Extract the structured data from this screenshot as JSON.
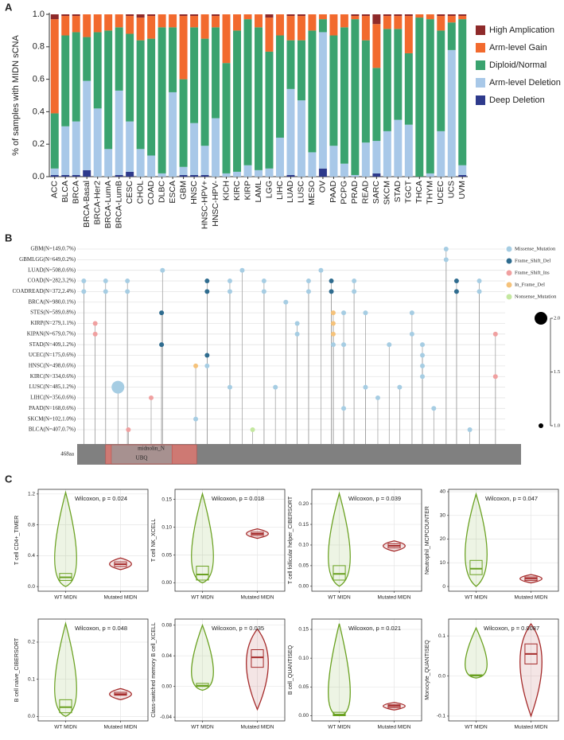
{
  "chart_data": [
    {
      "type": "bar",
      "stacked": true,
      "panel_label": "A",
      "ylabel": "% of samples with MIDN sCNA",
      "categories": [
        "ACC",
        "BLCA",
        "BRCA",
        "BRCA-Basal",
        "BRCA-Her2",
        "BRCA-LumA",
        "BRCA-LumB",
        "CESC",
        "CHOL",
        "COAD",
        "DLBC",
        "ESCA",
        "GBM",
        "HNSC",
        "HNSC-HPV+",
        "HNSC-HPV-",
        "KICH",
        "KIRC",
        "KIRP",
        "LAML",
        "LGG",
        "LIHC",
        "LUAD",
        "LUSC",
        "MESO",
        "OV",
        "PAAD",
        "PCPG",
        "PRAD",
        "READ",
        "SARC",
        "SKCM",
        "STAD",
        "TGCT",
        "THCA",
        "THYM",
        "UCEC",
        "UCS",
        "UVM"
      ],
      "series": [
        {
          "name": "High Amplication",
          "color": "#8e2a2a",
          "values": [
            0.03,
            0.01,
            0.01,
            0,
            0,
            0,
            0,
            0.01,
            0.02,
            0.01,
            0,
            0,
            0.01,
            0.01,
            0,
            0.01,
            0,
            0,
            0,
            0,
            0.02,
            0,
            0.01,
            0.01,
            0,
            0,
            0,
            0,
            0.01,
            0.01,
            0.06,
            0.01,
            0.01,
            0.01,
            0,
            0,
            0.01,
            0.01,
            0.01
          ]
        },
        {
          "name": "Arm-level Gain",
          "color": "#f26a2e",
          "values": [
            0.58,
            0.12,
            0.1,
            0.14,
            0.11,
            0.1,
            0.08,
            0.11,
            0.14,
            0.14,
            0.08,
            0.08,
            0.39,
            0.07,
            0.15,
            0.07,
            0.3,
            0.1,
            0.03,
            0.08,
            0.21,
            0.13,
            0.15,
            0.15,
            0.1,
            0.03,
            0.13,
            0.08,
            0.02,
            0.15,
            0.27,
            0.08,
            0.08,
            0.23,
            0.02,
            0.03,
            0.09,
            0.04,
            0.02
          ]
        },
        {
          "name": "Diploid/Normal",
          "color": "#3aa36f",
          "values": [
            0.34,
            0.56,
            0.55,
            0.27,
            0.47,
            0.73,
            0.39,
            0.54,
            0.67,
            0.72,
            0.9,
            0.4,
            0.54,
            0.59,
            0.66,
            0.56,
            0.68,
            0.87,
            0.9,
            0.88,
            0.72,
            0.63,
            0.3,
            0.37,
            0.75,
            0.08,
            0.68,
            0.84,
            0.96,
            0.63,
            0.45,
            0.63,
            0.56,
            0.44,
            0.98,
            0.95,
            0.62,
            0.17,
            0.9
          ]
        },
        {
          "name": "Arm-level Deletion",
          "color": "#a8c8e8",
          "values": [
            0.04,
            0.3,
            0.33,
            0.55,
            0.42,
            0.17,
            0.52,
            0.31,
            0.17,
            0.13,
            0.02,
            0.52,
            0.05,
            0.32,
            0.18,
            0.36,
            0.02,
            0.03,
            0.07,
            0.04,
            0.05,
            0.24,
            0.53,
            0.47,
            0.15,
            0.84,
            0.19,
            0.08,
            0.01,
            0.21,
            0.2,
            0.28,
            0.35,
            0.32,
            0,
            0.02,
            0.28,
            0.78,
            0.06
          ]
        },
        {
          "name": "Deep Deletion",
          "color": "#2e3a8c",
          "values": [
            0.01,
            0.01,
            0.01,
            0.04,
            0,
            0,
            0.01,
            0.03,
            0,
            0,
            0,
            0,
            0.01,
            0.01,
            0.01,
            0,
            0,
            0,
            0,
            0,
            0,
            0,
            0.01,
            0,
            0,
            0.05,
            0,
            0,
            0,
            0,
            0.02,
            0,
            0,
            0,
            0,
            0,
            0,
            0,
            0.01
          ]
        }
      ],
      "ylim": [
        0,
        1
      ],
      "yticks": [
        {
          "value": 0,
          "label": "0.0"
        },
        0.2,
        0.4,
        0.6,
        0.8,
        {
          "value": 1,
          "label": "1.0"
        }
      ],
      "legend": "right"
    },
    {
      "type": "lollipop",
      "panel_label": "B",
      "categories": [
        "GBM(N=149,0.7%)",
        "GBMLGG(N=649,0.2%)",
        "LUAD(N=508,0.6%)",
        "COAD(N=282,3.2%)",
        "COADREAD(N=372,2.4%)",
        "BRCA(N=980,0.1%)",
        "STES(N=589,0.8%)",
        "KIRP(N=279,1.1%)",
        "KIPAN(N=679,0.7%)",
        "STAD(N=409,1.2%)",
        "UCEC(N=175,0.6%)",
        "HNSC(N=498,0.6%)",
        "KIRC(N=334,0.6%)",
        "LUSC(N=485,1.2%)",
        "LIHC(N=356,0.6%)",
        "PAAD(N=168,0.6%)",
        "SKCM(N=102,1.0%)",
        "BLCA(N=407,0.7%)"
      ],
      "xlim": [
        0,
        468
      ],
      "length_label": "468aa",
      "domains": [
        {
          "name": "midnolin_N",
          "start": 30,
          "end": 126,
          "color": "#e8776f"
        },
        {
          "name": "UBQ",
          "start": 36,
          "end": 100,
          "color": "#9a9a9a"
        }
      ],
      "series": [
        {
          "name": "Missense_Mutation",
          "color": "#a6cde3",
          "x": [
            389,
            389,
            90,
            174,
            257,
            7,
            30,
            53,
            161,
            197,
            244,
            292,
            424,
            7,
            30,
            53,
            161,
            197,
            244,
            292,
            424,
            220,
            281,
            304,
            353,
            232,
            232,
            353,
            270,
            281,
            329,
            364,
            364,
            137,
            364,
            364,
            43,
            161,
            209,
            304,
            340,
            317,
            281,
            376,
            125,
            414
          ],
          "y": [
            "GBM(N=149,0.7%)",
            "GBMLGG(N=649,0.2%)",
            "LUAD(N=508,0.6%)",
            "LUAD(N=508,0.6%)",
            "LUAD(N=508,0.6%)",
            "COAD(N=282,3.2%)",
            "COAD(N=282,3.2%)",
            "COAD(N=282,3.2%)",
            "COAD(N=282,3.2%)",
            "COAD(N=282,3.2%)",
            "COAD(N=282,3.2%)",
            "COAD(N=282,3.2%)",
            "COAD(N=282,3.2%)",
            "COADREAD(N=372,2.4%)",
            "COADREAD(N=372,2.4%)",
            "COADREAD(N=372,2.4%)",
            "COADREAD(N=372,2.4%)",
            "COADREAD(N=372,2.4%)",
            "COADREAD(N=372,2.4%)",
            "COADREAD(N=372,2.4%)",
            "COADREAD(N=372,2.4%)",
            "BRCA(N=980,0.1%)",
            "STES(N=589,0.8%)",
            "STES(N=589,0.8%)",
            "STES(N=589,0.8%)",
            "KIRP(N=279,1.1%)",
            "KIPAN(N=679,0.7%)",
            "KIPAN(N=679,0.7%)",
            "STAD(N=409,1.2%)",
            "STAD(N=409,1.2%)",
            "STAD(N=409,1.2%)",
            "STAD(N=409,1.2%)",
            "UCEC(N=175,0.6%)",
            "HNSC(N=498,0.6%)",
            "HNSC(N=498,0.6%)",
            "KIRC(N=334,0.6%)",
            "LUSC(N=485,1.2%)",
            "LUSC(N=485,1.2%)",
            "LUSC(N=485,1.2%)",
            "LUSC(N=485,1.2%)",
            "LUSC(N=485,1.2%)",
            "LIHC(N=356,0.6%)",
            "PAAD(N=168,0.6%)",
            "PAAD(N=168,0.6%)",
            "SKCM(N=102,1.0%)",
            "BLCA(N=407,0.7%)"
          ],
          "values": [
            1,
            1,
            1,
            1,
            1,
            1,
            1,
            1,
            1,
            1,
            1,
            1,
            1,
            1,
            1,
            1,
            1,
            1,
            1,
            1,
            1,
            1,
            1,
            1,
            1,
            1,
            1,
            1,
            1,
            1,
            1,
            1,
            1,
            1,
            1,
            1,
            2,
            1,
            1,
            1,
            1,
            1,
            1,
            1,
            1,
            1
          ]
        },
        {
          "name": "Frame_Shift_Del",
          "color": "#2f6c8f",
          "x": [
            137,
            268,
            400,
            137,
            268,
            400,
            89,
            89,
            137
          ],
          "y": [
            "COAD(N=282,3.2%)",
            "COAD(N=282,3.2%)",
            "COAD(N=282,3.2%)",
            "COADREAD(N=372,2.4%)",
            "COADREAD(N=372,2.4%)",
            "COADREAD(N=372,2.4%)",
            "STES(N=589,0.8%)",
            "STAD(N=409,1.2%)",
            "UCEC(N=175,0.6%)"
          ],
          "values": [
            1,
            1,
            1,
            1,
            1,
            1,
            1,
            1,
            1
          ]
        },
        {
          "name": "Frame_Shift_Ins",
          "color": "#f0a0a0",
          "x": [
            19,
            19,
            441,
            441,
            78,
            54
          ],
          "y": [
            "KIRP(N=279,1.1%)",
            "KIPAN(N=679,0.7%)",
            "KIPAN(N=679,0.7%)",
            "KIRC(N=334,0.6%)",
            "LIHC(N=356,0.6%)",
            "BLCA(N=407,0.7%)"
          ],
          "values": [
            1,
            1,
            1,
            1,
            1,
            1
          ]
        },
        {
          "name": "In_Frame_Del",
          "color": "#f5c27a",
          "x": [
            270,
            270,
            270,
            125
          ],
          "y": [
            "STES(N=589,0.8%)",
            "KIRP(N=279,1.1%)",
            "KIPAN(N=679,0.7%)",
            "HNSC(N=498,0.6%)"
          ],
          "values": [
            1,
            1,
            1,
            1
          ]
        },
        {
          "name": "Nonsense_Mutation",
          "color": "#c4e8a0",
          "x": [
            185
          ],
          "y": [
            "BLCA(N=407,0.7%)"
          ],
          "values": [
            1
          ]
        }
      ],
      "sizelim": [
        1,
        2
      ],
      "sizeticks": [
        {
          "value": 2,
          "label": "2.0"
        },
        1.5,
        {
          "value": 1,
          "label": "1.0"
        }
      ]
    },
    {
      "type": "violin",
      "panel_label": "C",
      "ylabel": "T cell CD4+_TIMER",
      "annotation": "Wilcoxon, p = 0.024",
      "categories": [
        "WT MIDN",
        "Mutated MIDN"
      ],
      "colors": [
        "#6aa121",
        "#a52a2a"
      ],
      "min": [
        0,
        0.22
      ],
      "q1": [
        0.08,
        0.26
      ],
      "median": [
        0.12,
        0.29
      ],
      "q3": [
        0.17,
        0.32
      ],
      "max": [
        1.22,
        0.37
      ],
      "ylim": [
        -0.06,
        1.26
      ],
      "yticks": [
        {
          "value": 0,
          "label": "0.0"
        },
        0.4,
        0.8,
        1.2
      ]
    },
    {
      "type": "violin",
      "ylabel": "T cell NK_XCELL",
      "annotation": "Wilcoxon, p = 0.018",
      "categories": [
        "WT MIDN",
        "Mutated MIDN"
      ],
      "colors": [
        "#6aa121",
        "#a52a2a"
      ],
      "min": [
        0,
        0.08
      ],
      "q1": [
        0.005,
        0.085
      ],
      "median": [
        0.015,
        0.088
      ],
      "q3": [
        0.03,
        0.091
      ],
      "max": [
        0.16,
        0.097
      ],
      "ylim": [
        -0.015,
        0.168
      ],
      "yticks": [
        {
          "value": 0,
          "label": "0.00"
        },
        0.05,
        {
          "value": 0.1,
          "label": "0.10"
        },
        0.15
      ]
    },
    {
      "type": "violin",
      "ylabel": "T cell follicular helper_CIBERSORT",
      "annotation": "Wilcoxon, p = 0.039",
      "categories": [
        "WT MIDN",
        "Mutated MIDN"
      ],
      "colors": [
        "#6aa121",
        "#a52a2a"
      ],
      "min": [
        0,
        0.085
      ],
      "q1": [
        0.015,
        0.093
      ],
      "median": [
        0.03,
        0.098
      ],
      "q3": [
        0.05,
        0.103
      ],
      "max": [
        0.225,
        0.11
      ],
      "ylim": [
        -0.012,
        0.235
      ],
      "yticks": [
        {
          "value": 0,
          "label": "0.00"
        },
        0.05,
        {
          "value": 0.1,
          "label": "0.10"
        },
        0.15,
        {
          "value": 0.2,
          "label": "0.20"
        }
      ]
    },
    {
      "type": "violin",
      "ylabel": "Neutrophil_MCPCOUNTER",
      "annotation": "Wilcoxon, p = 0.047",
      "categories": [
        "WT MIDN",
        "Mutated MIDN"
      ],
      "colors": [
        "#6aa121",
        "#a52a2a"
      ],
      "min": [
        0,
        1.5
      ],
      "q1": [
        5,
        2.5
      ],
      "median": [
        7.5,
        3.3
      ],
      "q3": [
        11,
        4
      ],
      "max": [
        39,
        5
      ],
      "ylim": [
        -2,
        41
      ],
      "yticks": [
        0,
        10,
        20,
        30,
        40
      ]
    },
    {
      "type": "violin",
      "ylabel": "B cell naive_CIBERSORT",
      "annotation": "Wilcoxon, p = 0.048",
      "categories": [
        "WT MIDN",
        "Mutated MIDN"
      ],
      "colors": [
        "#6aa121",
        "#a52a2a"
      ],
      "min": [
        0,
        0.045
      ],
      "q1": [
        0.01,
        0.057
      ],
      "median": [
        0.025,
        0.06
      ],
      "q3": [
        0.045,
        0.065
      ],
      "max": [
        0.25,
        0.075
      ],
      "ylim": [
        -0.012,
        0.262
      ],
      "yticks": [
        {
          "value": 0,
          "label": "0.0"
        },
        0.1,
        0.2
      ]
    },
    {
      "type": "violin",
      "ylabel": "Class-switched memory B cell_XCELL",
      "annotation": "Wilcoxon, p = 0.035",
      "categories": [
        "WT MIDN",
        "Mutated MIDN"
      ],
      "colors": [
        "#6aa121",
        "#a52a2a"
      ],
      "min": [
        -0.005,
        -0.03
      ],
      "q1": [
        0,
        0.025
      ],
      "median": [
        0.001,
        0.038
      ],
      "q3": [
        0.004,
        0.048
      ],
      "max": [
        0.08,
        0.075
      ],
      "ylim": [
        -0.045,
        0.088
      ],
      "yticks": [
        -0.04,
        {
          "value": 0,
          "label": "0.00"
        },
        0.04,
        0.08
      ]
    },
    {
      "type": "violin",
      "ylabel": "B cell_QUANTISEQ",
      "annotation": "Wilcoxon, p = 0.021",
      "categories": [
        "WT MIDN",
        "Mutated MIDN"
      ],
      "colors": [
        "#6aa121",
        "#a52a2a"
      ],
      "min": [
        0,
        0.01
      ],
      "q1": [
        0,
        0.014
      ],
      "median": [
        0.002,
        0.017
      ],
      "q3": [
        0.006,
        0.019
      ],
      "max": [
        0.16,
        0.023
      ],
      "ylim": [
        -0.009,
        0.168
      ],
      "yticks": [
        {
          "value": 0,
          "label": "0.00"
        },
        0.05,
        {
          "value": 0.1,
          "label": "0.10"
        },
        0.15
      ]
    },
    {
      "type": "violin",
      "ylabel": "Monocyte_QUANTISEQ",
      "annotation": "Wilcoxon, p = 0.0087",
      "categories": [
        "WT MIDN",
        "Mutated MIDN"
      ],
      "colors": [
        "#6aa121",
        "#a52a2a"
      ],
      "min": [
        -0.005,
        -0.1
      ],
      "q1": [
        0,
        0.03
      ],
      "median": [
        0.001,
        0.055
      ],
      "q3": [
        0.003,
        0.08
      ],
      "max": [
        0.12,
        0.13
      ],
      "ylim": [
        -0.112,
        0.142
      ],
      "yticks": [
        -0.1,
        {
          "value": 0,
          "label": "0.0"
        },
        0.1
      ]
    }
  ]
}
